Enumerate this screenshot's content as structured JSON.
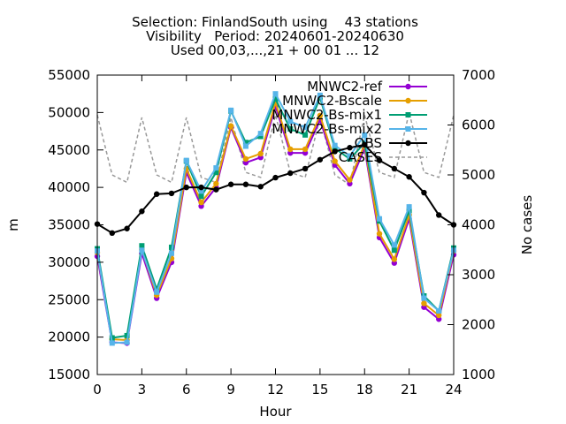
{
  "chart_data": {
    "type": "line",
    "title": [
      "Selection: FinlandSouth using    43 stations",
      "Visibility   Period: 20240601-20240630",
      "Used 00,03,...,21 + 00 01 ... 12"
    ],
    "xlabel": "Hour",
    "ylabel": "m",
    "y2label": "No cases",
    "xlim": [
      0,
      24
    ],
    "ylim": [
      15000,
      55000
    ],
    "y2lim": [
      1000,
      7000
    ],
    "xticks": [
      0,
      3,
      6,
      9,
      12,
      15,
      18,
      21,
      24
    ],
    "yticks": [
      15000,
      20000,
      25000,
      30000,
      35000,
      40000,
      45000,
      50000,
      55000
    ],
    "y2ticks": [
      1000,
      2000,
      3000,
      4000,
      5000,
      6000,
      7000
    ],
    "grid": false,
    "legend_position": "top-right",
    "x": [
      0,
      1,
      2,
      3,
      4,
      5,
      6,
      7,
      8,
      9,
      10,
      11,
      12,
      13,
      14,
      15,
      16,
      17,
      18,
      19,
      20,
      21,
      22,
      23,
      24
    ],
    "series": [
      {
        "name": "MNWC2-ref",
        "color": "#9400d3",
        "marker": "circle",
        "axis": "y",
        "values": [
          30800,
          19300,
          19200,
          31200,
          25200,
          30000,
          42000,
          37500,
          40000,
          48000,
          43300,
          44000,
          50800,
          44600,
          44600,
          49000,
          43000,
          40500,
          45200,
          33300,
          29900,
          35800,
          24000,
          22400,
          31000
        ]
      },
      {
        "name": "MNWC2-Bscale",
        "color": "#e69f00",
        "marker": "circle",
        "axis": "y",
        "values": [
          31300,
          19700,
          19600,
          31700,
          25600,
          30500,
          42500,
          38000,
          40500,
          48200,
          43800,
          44500,
          51300,
          45100,
          45100,
          49600,
          43500,
          41000,
          45700,
          33800,
          30400,
          36300,
          24500,
          22900,
          31500
        ]
      },
      {
        "name": "MNWC2-Bs-mix1",
        "color": "#009e73",
        "marker": "square",
        "axis": "y",
        "values": [
          31800,
          19900,
          20200,
          32200,
          26400,
          32000,
          43500,
          38800,
          42000,
          50200,
          46000,
          46800,
          51800,
          47800,
          47000,
          52000,
          45200,
          43800,
          45900,
          35500,
          31600,
          36900,
          25500,
          23500,
          31900
        ]
      },
      {
        "name": "MNWC2-Bs-mix2",
        "color": "#56b4e9",
        "marker": "square",
        "axis": "y",
        "values": [
          31500,
          19200,
          19300,
          31600,
          26000,
          31200,
          43600,
          39500,
          42600,
          50300,
          45500,
          47200,
          52500,
          48800,
          48000,
          52300,
          45600,
          44200,
          47000,
          35800,
          32300,
          37400,
          25200,
          23500,
          31600
        ]
      },
      {
        "name": "OBS",
        "color": "#000000",
        "marker": "circle",
        "axis": "y",
        "values": [
          35100,
          33900,
          34500,
          36800,
          39100,
          39200,
          40000,
          40000,
          39700,
          40400,
          40400,
          40100,
          41300,
          41900,
          42500,
          43700,
          44800,
          45300,
          45700,
          43600,
          42500,
          41400,
          39300,
          36300,
          35000
        ]
      },
      {
        "name": "CASES",
        "color": "#999999",
        "marker": "none",
        "dash": true,
        "axis": "y2",
        "values": [
          6200,
          5000,
          4850,
          6150,
          5000,
          4850,
          6150,
          4950,
          4850,
          6150,
          5050,
          4950,
          6200,
          5050,
          4950,
          6150,
          5000,
          4800,
          6200,
          5050,
          4950,
          6250,
          5050,
          4950,
          6200
        ]
      }
    ]
  }
}
